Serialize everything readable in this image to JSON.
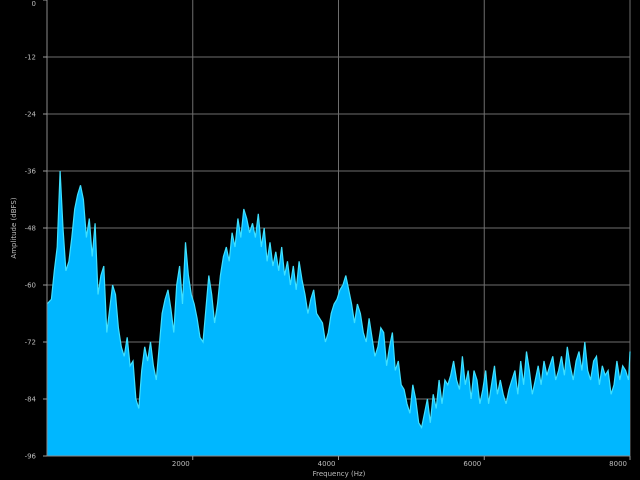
{
  "chart_data": {
    "type": "area",
    "xlabel": "Frequency (Hz)",
    "ylabel": "Amplitude (dBFS)",
    "xlim": [
      0,
      8000
    ],
    "ylim": [
      -96,
      0
    ],
    "x_ticks": [
      2000,
      4000,
      6000,
      8000
    ],
    "x_tick_labels": [
      "2000",
      "4000",
      "6000",
      "8000"
    ],
    "y_ticks": [
      0,
      -12,
      -24,
      -36,
      -48,
      -60,
      -72,
      -84,
      -96
    ],
    "y_tick_labels": [
      "0",
      "-12",
      "-24",
      "-36",
      "-48",
      "-60",
      "-72",
      "-84",
      "-96"
    ],
    "grid": true,
    "fill_color": "#00b7ff",
    "line_color": "#3fe0ff",
    "background": "#000000",
    "grid_color": "#6e6e6e",
    "series": [
      {
        "x": [
          0,
          60,
          100,
          140,
          180,
          220,
          260,
          300,
          340,
          380,
          420,
          460,
          500,
          540,
          580,
          620,
          660,
          700,
          740,
          780,
          820,
          860,
          900,
          940,
          980,
          1020,
          1060,
          1100,
          1140,
          1180,
          1220,
          1260,
          1300,
          1340,
          1380,
          1420,
          1460,
          1500,
          1540,
          1580,
          1620,
          1660,
          1700,
          1740,
          1780,
          1820,
          1860,
          1900,
          1940,
          1980,
          2020,
          2060,
          2100,
          2140,
          2180,
          2220,
          2260,
          2300,
          2340,
          2380,
          2420,
          2460,
          2500,
          2540,
          2580,
          2620,
          2660,
          2700,
          2740,
          2780,
          2820,
          2860,
          2900,
          2940,
          2980,
          3020,
          3060,
          3100,
          3140,
          3180,
          3220,
          3260,
          3300,
          3340,
          3380,
          3420,
          3460,
          3500,
          3540,
          3580,
          3620,
          3660,
          3700,
          3740,
          3780,
          3820,
          3860,
          3900,
          3940,
          3980,
          4020,
          4060,
          4100,
          4140,
          4180,
          4220,
          4260,
          4300,
          4340,
          4380,
          4420,
          4460,
          4500,
          4540,
          4580,
          4620,
          4660,
          4700,
          4740,
          4780,
          4820,
          4860,
          4900,
          4940,
          4980,
          5020,
          5060,
          5100,
          5140,
          5180,
          5220,
          5260,
          5300,
          5340,
          5380,
          5420,
          5460,
          5500,
          5540,
          5580,
          5620,
          5660,
          5700,
          5740,
          5780,
          5820,
          5860,
          5900,
          5940,
          5980,
          6020,
          6060,
          6100,
          6140,
          6180,
          6220,
          6260,
          6300,
          6340,
          6380,
          6420,
          6460,
          6500,
          6540,
          6580,
          6620,
          6660,
          6700,
          6740,
          6780,
          6820,
          6860,
          6900,
          6940,
          6980,
          7020,
          7060,
          7100,
          7140,
          7180,
          7220,
          7260,
          7300,
          7340,
          7380,
          7420,
          7460,
          7500,
          7540,
          7580,
          7620,
          7660,
          7700,
          7740,
          7780,
          7820,
          7860,
          7900,
          7940,
          7980,
          8000
        ],
        "y": [
          -64,
          -63,
          -57,
          -52,
          -36,
          -48,
          -57,
          -55,
          -50,
          -44,
          -41,
          -39,
          -42,
          -50,
          -46,
          -54,
          -47,
          -62,
          -58,
          -56,
          -70,
          -65,
          -60,
          -62,
          -69,
          -73,
          -75,
          -71,
          -77,
          -76,
          -84,
          -86,
          -78,
          -73,
          -76,
          -72,
          -77,
          -80,
          -73,
          -66,
          -63,
          -61,
          -65,
          -70,
          -60,
          -56,
          -64,
          -51,
          -58,
          -62,
          -64,
          -67,
          -71,
          -72,
          -65,
          -58,
          -62,
          -68,
          -64,
          -58,
          -54,
          -52,
          -55,
          -49,
          -52,
          -46,
          -50,
          -44,
          -46,
          -49,
          -47,
          -50,
          -45,
          -52,
          -48,
          -55,
          -51,
          -56,
          -53,
          -57,
          -52,
          -58,
          -55,
          -60,
          -56,
          -61,
          -55,
          -59,
          -62,
          -66,
          -63,
          -61,
          -66,
          -67,
          -68,
          -72,
          -70,
          -66,
          -64,
          -63,
          -61,
          -60,
          -58,
          -61,
          -64,
          -68,
          -64,
          -66,
          -70,
          -72,
          -67,
          -71,
          -75,
          -73,
          -69,
          -70,
          -77,
          -73,
          -70,
          -78,
          -76,
          -81,
          -82,
          -85,
          -87,
          -81,
          -84,
          -89,
          -90,
          -87,
          -84,
          -89,
          -83,
          -86,
          -80,
          -85,
          -80,
          -81,
          -79,
          -76,
          -80,
          -82,
          -75,
          -81,
          -78,
          -84,
          -78,
          -80,
          -85,
          -82,
          -78,
          -85,
          -81,
          -77,
          -83,
          -80,
          -83,
          -85,
          -82,
          -80,
          -78,
          -83,
          -76,
          -81,
          -74,
          -78,
          -83,
          -80,
          -77,
          -81,
          -76,
          -79,
          -77,
          -75,
          -80,
          -78,
          -75,
          -79,
          -73,
          -77,
          -80,
          -76,
          -74,
          -78,
          -72,
          -78,
          -80,
          -76,
          -75,
          -81,
          -77,
          -79,
          -78,
          -83,
          -81,
          -76,
          -80,
          -77,
          -78,
          -80,
          -74
        ]
      }
    ]
  }
}
